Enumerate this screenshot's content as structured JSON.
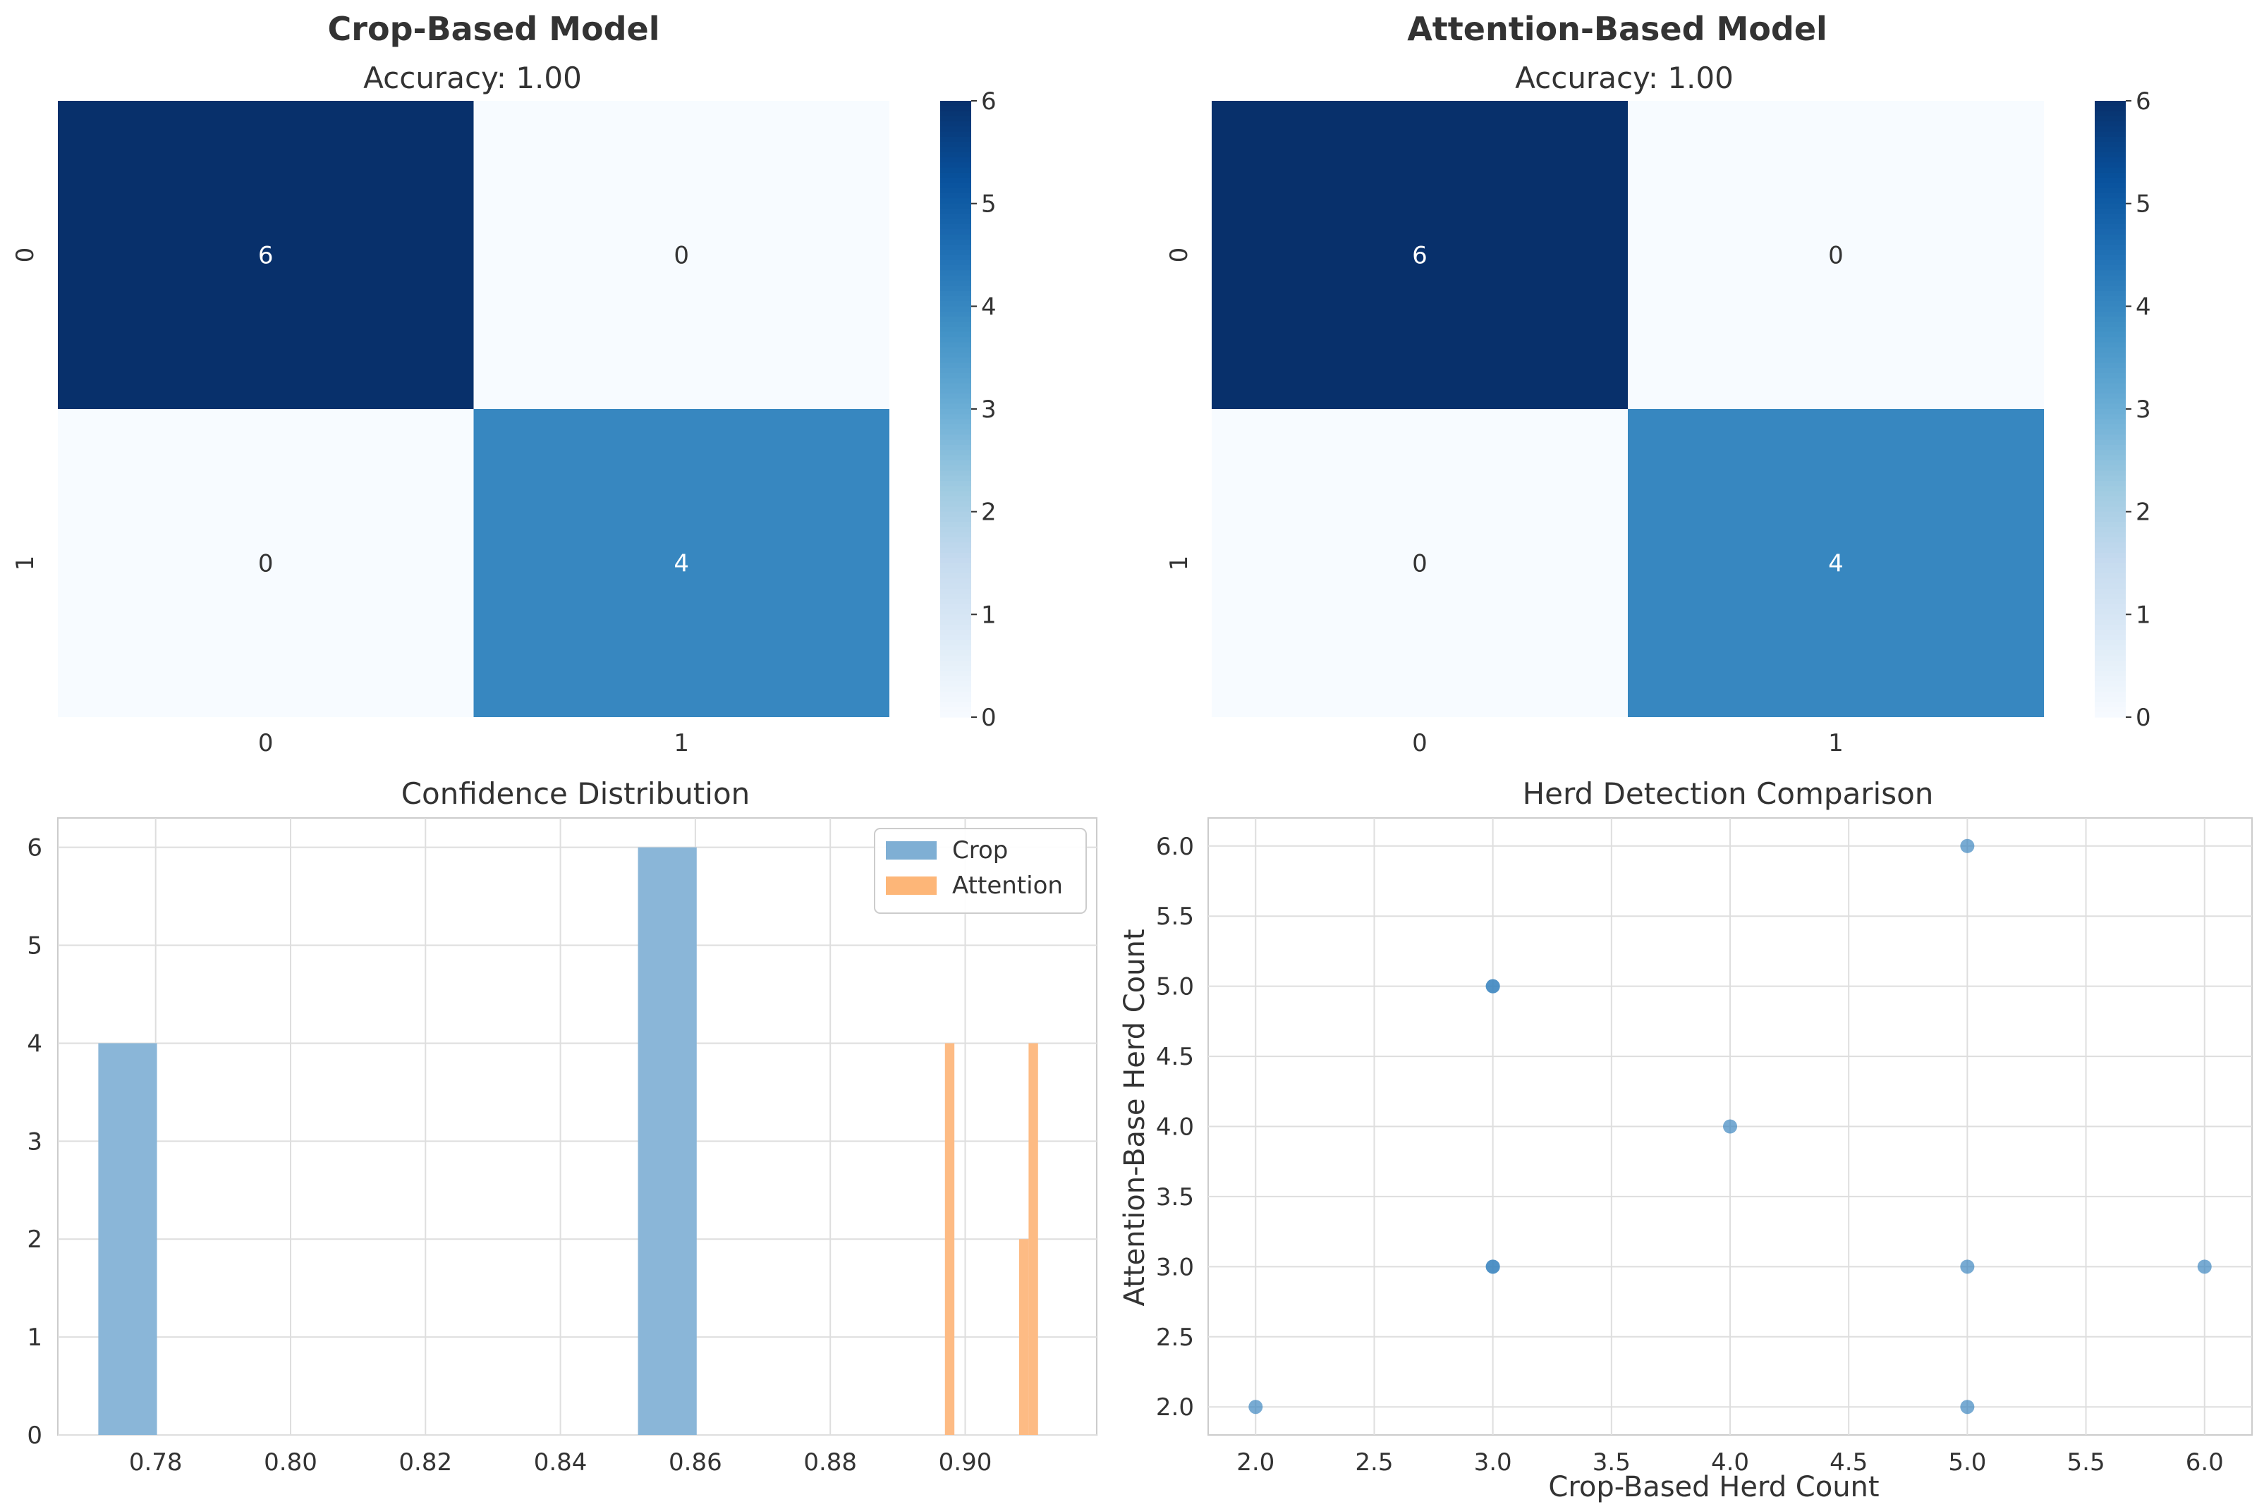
{
  "chart_data": [
    {
      "type": "heatmap",
      "title": "Crop-Based Model",
      "subtitle": "Accuracy: 1.00",
      "row_labels": [
        "0",
        "1"
      ],
      "col_labels": [
        "0",
        "1"
      ],
      "values": [
        [
          6,
          0
        ],
        [
          0,
          4
        ]
      ],
      "colorbar_ticks": [
        "0",
        "1",
        "2",
        "3",
        "4",
        "5",
        "6"
      ],
      "colorbar_range": [
        0,
        6
      ],
      "colormap": "Blues",
      "cell_text_labels": [
        "6",
        "0",
        "0",
        "4"
      ]
    },
    {
      "type": "heatmap",
      "title": "Attention-Based Model",
      "subtitle": "Accuracy: 1.00",
      "row_labels": [
        "0",
        "1"
      ],
      "col_labels": [
        "0",
        "1"
      ],
      "values": [
        [
          6,
          0
        ],
        [
          0,
          4
        ]
      ],
      "colorbar_ticks": [
        "0",
        "1",
        "2",
        "3",
        "4",
        "5",
        "6"
      ],
      "colorbar_range": [
        0,
        6
      ],
      "colormap": "Blues",
      "cell_text_labels": [
        "6",
        "0",
        "0",
        "4"
      ]
    },
    {
      "type": "bar",
      "title": "Confidence Distribution",
      "xlabel": "",
      "ylabel": "",
      "xlim": [
        0.7655,
        0.9195
      ],
      "ylim": [
        0,
        6.3
      ],
      "x_ticks": [
        "0.78",
        "0.80",
        "0.82",
        "0.84",
        "0.86",
        "0.88",
        "0.90"
      ],
      "x_tick_values": [
        0.78,
        0.8,
        0.82,
        0.84,
        0.86,
        0.88,
        0.9
      ],
      "y_ticks": [
        "0",
        "1",
        "2",
        "3",
        "4",
        "5",
        "6"
      ],
      "legend_position": "top-right",
      "grid": true,
      "series": [
        {
          "name": "Crop",
          "color": "#8ab6d8",
          "legend_color": "#7fafd4",
          "bins": [
            {
              "x0": 0.7715,
              "x1": 0.7802,
              "count": 4
            },
            {
              "x0": 0.8515,
              "x1": 0.8602,
              "count": 6
            }
          ]
        },
        {
          "name": "Attention",
          "color": "#fdbb84",
          "legend_color": "#fdb678",
          "bins": [
            {
              "x0": 0.897,
              "x1": 0.8984,
              "count": 4
            },
            {
              "x0": 0.908,
              "x1": 0.9094,
              "count": 2
            },
            {
              "x0": 0.9094,
              "x1": 0.9108,
              "count": 4
            }
          ]
        }
      ]
    },
    {
      "type": "scatter",
      "title": "Herd Detection Comparison",
      "xlabel": "Crop-Based Herd Count",
      "ylabel": "Attention-Base Herd Count",
      "xlim": [
        1.8,
        6.2
      ],
      "ylim": [
        1.8,
        6.2
      ],
      "x_ticks": [
        "2.0",
        "2.5",
        "3.0",
        "3.5",
        "4.0",
        "4.5",
        "5.0",
        "5.5",
        "6.0"
      ],
      "x_tick_values": [
        2.0,
        2.5,
        3.0,
        3.5,
        4.0,
        4.5,
        5.0,
        5.5,
        6.0
      ],
      "y_ticks": [
        "2.0",
        "2.5",
        "3.0",
        "3.5",
        "4.0",
        "4.5",
        "5.0",
        "5.5",
        "6.0"
      ],
      "y_tick_values": [
        2.0,
        2.5,
        3.0,
        3.5,
        4.0,
        4.5,
        5.0,
        5.5,
        6.0
      ],
      "grid": true,
      "point_color": "#3f87c0",
      "points": [
        {
          "x": 2,
          "y": 2
        },
        {
          "x": 3,
          "y": 3
        },
        {
          "x": 3,
          "y": 3
        },
        {
          "x": 3,
          "y": 5
        },
        {
          "x": 3,
          "y": 5
        },
        {
          "x": 4,
          "y": 4
        },
        {
          "x": 5,
          "y": 6
        },
        {
          "x": 5,
          "y": 3
        },
        {
          "x": 5,
          "y": 2
        },
        {
          "x": 6,
          "y": 3
        }
      ]
    }
  ]
}
